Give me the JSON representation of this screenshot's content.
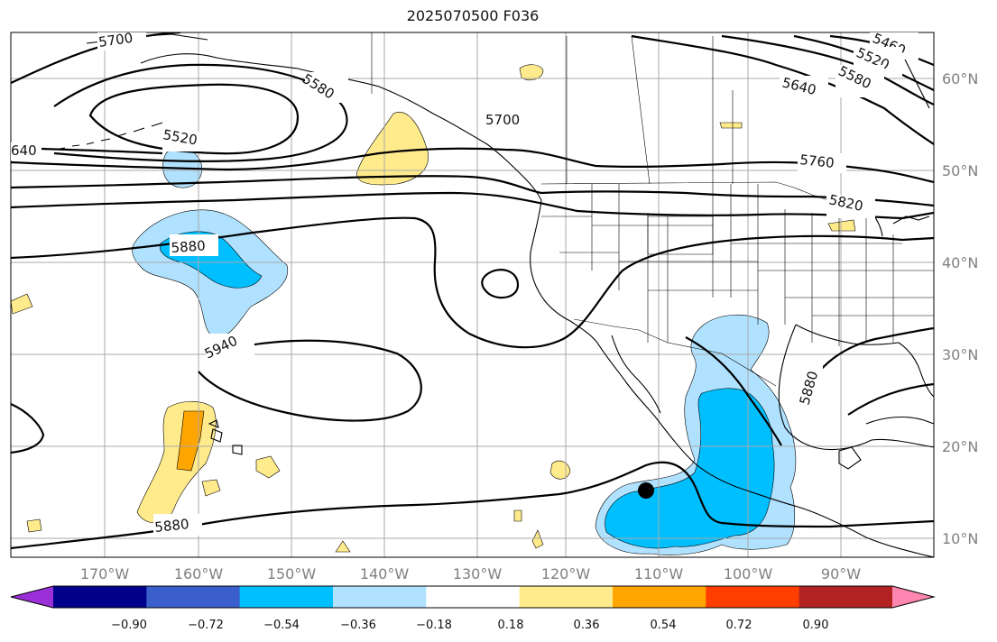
{
  "title": "2025070500 F036",
  "map": {
    "lon_ticks": [
      "170°W",
      "160°W",
      "150°W",
      "140°W",
      "130°W",
      "120°W",
      "110°W",
      "100°W",
      "90°W"
    ],
    "lat_ticks": [
      "60°N",
      "50°N",
      "40°N",
      "30°N",
      "20°N",
      "10°N"
    ],
    "contour_labels": [
      "5700",
      "5580",
      "5520",
      "640",
      "5700",
      "5460",
      "5520",
      "5580",
      "5640",
      "5760",
      "5820",
      "5880",
      "5940",
      "5880",
      "5880"
    ],
    "marker": "black-dot"
  },
  "colorbar": {
    "labels": [
      "−0.90",
      "−0.72",
      "−0.54",
      "−0.36",
      "−0.18",
      "0.18",
      "0.36",
      "0.54",
      "0.72",
      "0.90"
    ],
    "colors": [
      "#9b30d8",
      "#00008b",
      "#3a5fcd",
      "#00bfff",
      "#b0e2ff",
      "#ffffff",
      "#ffeb8c",
      "#ffa500",
      "#ff3e00",
      "#b22222",
      "#ff86b0"
    ]
  }
}
